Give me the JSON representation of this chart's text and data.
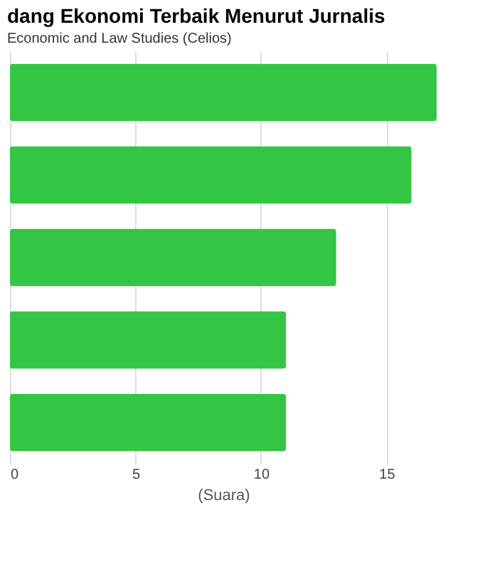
{
  "chart_data": {
    "type": "bar",
    "orientation": "horizontal",
    "title": "dang Ekonomi Terbaik Menurut Jurnalis",
    "subtitle": "Economic and Law Studies (Celios)",
    "xlabel": "(Suara)",
    "categories": [
      null,
      null,
      null,
      null,
      null
    ],
    "values": [
      17,
      16,
      13,
      11,
      11
    ],
    "color": "#33c644",
    "xlim": [
      0,
      17
    ],
    "xticks": [
      0,
      5,
      10,
      15
    ],
    "grid": "x"
  }
}
